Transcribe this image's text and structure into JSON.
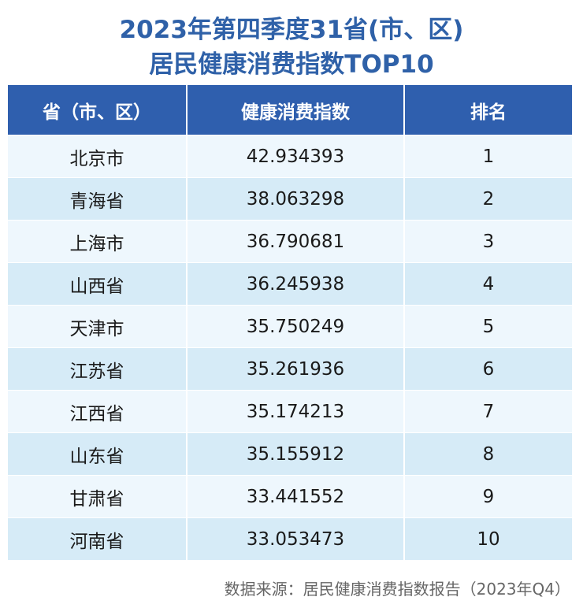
{
  "title": {
    "line1": "2023年第四季度31省(市、区)",
    "line2": "居民健康消费指数TOP10"
  },
  "table": {
    "headers": [
      "省（市、区）",
      "健康消费指数",
      "排名"
    ],
    "rows": [
      {
        "region": "北京市",
        "index": "42.934393",
        "rank": "1"
      },
      {
        "region": "青海省",
        "index": "38.063298",
        "rank": "2"
      },
      {
        "region": "上海市",
        "index": "36.790681",
        "rank": "3"
      },
      {
        "region": "山西省",
        "index": "36.245938",
        "rank": "4"
      },
      {
        "region": "天津市",
        "index": "35.750249",
        "rank": "5"
      },
      {
        "region": "江苏省",
        "index": "35.261936",
        "rank": "6"
      },
      {
        "region": "江西省",
        "index": "35.174213",
        "rank": "7"
      },
      {
        "region": "山东省",
        "index": "35.155912",
        "rank": "8"
      },
      {
        "region": "甘肃省",
        "index": "33.441552",
        "rank": "9"
      },
      {
        "region": "河南省",
        "index": "33.053473",
        "rank": "10"
      }
    ]
  },
  "source": "数据来源：居民健康消费指数报告（2023年Q4）",
  "colors": {
    "title": "#2f61a8",
    "header_bg": "#2f5fae",
    "row_light": "#eef7fd",
    "row_dark": "#d6ebf7"
  },
  "chart_data": {
    "type": "table",
    "title": "2023年第四季度31省(市、区)居民健康消费指数TOP10",
    "columns": [
      "省（市、区）",
      "健康消费指数",
      "排名"
    ],
    "categories": [
      "北京市",
      "青海省",
      "上海市",
      "山西省",
      "天津市",
      "江苏省",
      "江西省",
      "山东省",
      "甘肃省",
      "河南省"
    ],
    "values": [
      42.934393,
      38.063298,
      36.790681,
      36.245938,
      35.750249,
      35.261936,
      35.174213,
      35.155912,
      33.441552,
      33.053473
    ],
    "ranks": [
      1,
      2,
      3,
      4,
      5,
      6,
      7,
      8,
      9,
      10
    ],
    "source": "数据来源：居民健康消费指数报告（2023年Q4）"
  }
}
